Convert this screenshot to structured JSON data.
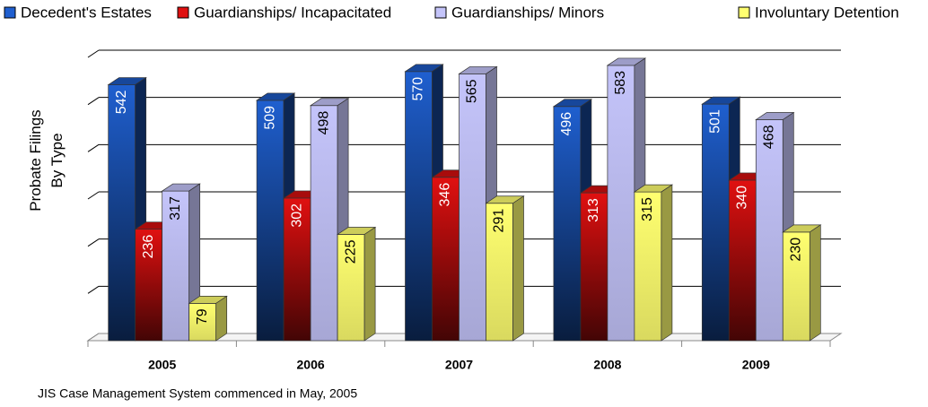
{
  "chart_data": {
    "type": "bar3d",
    "y_axis_label": "Probate Filings By Type",
    "footnote": "JIS Case Management System commenced in May, 2005",
    "categories": [
      "2005",
      "2006",
      "2007",
      "2008",
      "2009"
    ],
    "series": [
      {
        "name": "Decedent's Estates",
        "color": "#1f5fcf",
        "values": [
          542,
          509,
          570,
          496,
          501
        ]
      },
      {
        "name": "Guardianships/ Incapacitated",
        "color": "#e01010",
        "values": [
          236,
          302,
          346,
          313,
          340
        ]
      },
      {
        "name": "Guardianships/ Minors",
        "color": "#c4c4fa",
        "values": [
          317,
          498,
          565,
          583,
          468
        ]
      },
      {
        "name": "Involuntary Detention",
        "color": "#ffff70",
        "values": [
          79,
          225,
          291,
          315,
          230
        ]
      }
    ],
    "ylim": [
      0,
      600
    ],
    "yticks": [
      0,
      100,
      200,
      300,
      400,
      500,
      600
    ],
    "grid": true,
    "legend": "top"
  }
}
